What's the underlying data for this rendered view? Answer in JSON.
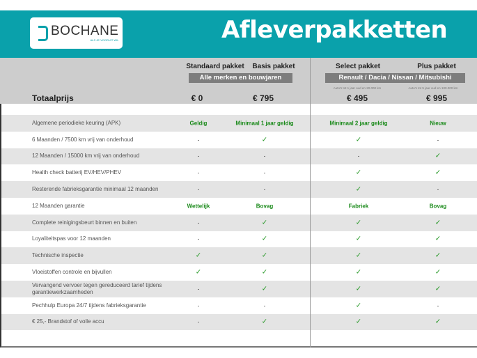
{
  "header": {
    "logo_text": "BOCHANE",
    "logo_tagline": "ALS JE VOORUIT WIL",
    "title": "Afleverpakketten"
  },
  "colors": {
    "brand": "#0aa1ab",
    "check": "#2a9a2a"
  },
  "packages": [
    {
      "name": "Standaard pakket",
      "price": "€ 0"
    },
    {
      "name": "Basis pakket",
      "price": "€ 795"
    },
    {
      "name": "Select pakket",
      "price": "€ 495",
      "note": "Auto's tot 1 jaar oud en 20.000 km"
    },
    {
      "name": "Plus pakket",
      "price": "€ 995",
      "note": "Auto's tot 5 jaar oud en 100.000 km"
    }
  ],
  "groups": {
    "left": "Alle merken en bouwjaren",
    "right": "Renault / Dacia / Nissan / Mitsubishi"
  },
  "total_label": "Totaalprijs",
  "rows": [
    {
      "label": "Algemene periodieke keuring (APK)",
      "values": [
        "Geldig",
        "Minimaal 1 jaar geldig",
        "Minimaal 2 jaar geldig",
        "Nieuw"
      ]
    },
    {
      "label": "6 Maanden / 7500 km vrij van onderhoud",
      "values": [
        "-",
        "✓",
        "✓",
        "-"
      ]
    },
    {
      "label": "12 Maanden / 15000 km vrij van onderhoud",
      "values": [
        "-",
        "-",
        "-",
        "✓"
      ]
    },
    {
      "label": "Health check batterij EV/HEV/PHEV",
      "values": [
        "-",
        "-",
        "✓",
        "✓"
      ]
    },
    {
      "label": "Resterende fabrieksgarantie minimaal 12 maanden",
      "values": [
        "-",
        "-",
        "✓",
        "-"
      ]
    },
    {
      "label": "12 Maanden  garantie",
      "values": [
        "Wettelijk",
        "Bovag",
        "Fabriek",
        "Bovag"
      ]
    },
    {
      "label": "Complete reinigingsbeurt binnen en buiten",
      "values": [
        "-",
        "✓",
        "✓",
        "✓"
      ]
    },
    {
      "label": "Loyaliteitspas voor 12 maanden",
      "values": [
        "-",
        "✓",
        "✓",
        "✓"
      ]
    },
    {
      "label": "Technische inspectie",
      "values": [
        "✓",
        "✓",
        "✓",
        "✓"
      ]
    },
    {
      "label": "Vloeistoffen controle en bijvullen",
      "values": [
        "✓",
        "✓",
        "✓",
        "✓"
      ]
    },
    {
      "label": "Vervangend vervoer tegen gereduceerd tarief tijdens garantiewerkzaamheden",
      "values": [
        "-",
        "✓",
        "✓",
        "✓"
      ]
    },
    {
      "label": "Pechhulp Europa 24/7 tijdens fabrieksgarantie",
      "values": [
        "-",
        "-",
        "✓",
        "-"
      ]
    },
    {
      "label": "€ 25,- Brandstof of  volle accu",
      "values": [
        "-",
        "✓",
        "✓",
        "✓"
      ]
    }
  ]
}
